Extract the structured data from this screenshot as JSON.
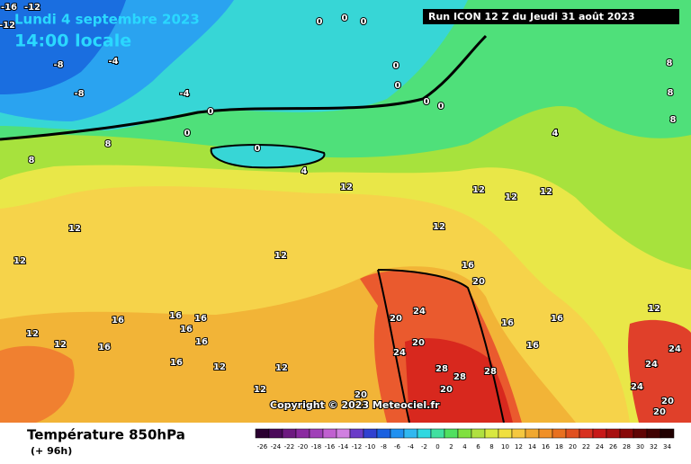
{
  "header": {
    "date": "Lundi 4 septembre 2023",
    "time": "14:00 locale",
    "run": "Run ICON 12 Z du Jeudi 31 août 2023"
  },
  "map": {
    "copyright": "Copyright © 2023 Meteociel.fr",
    "contour_labels": [
      -16,
      -12,
      -12,
      -8,
      -8,
      -4,
      -4,
      0,
      0,
      0,
      0,
      0,
      0,
      0,
      0,
      0,
      0,
      4,
      4,
      8,
      8,
      8,
      8,
      8,
      12,
      12,
      12,
      12,
      12,
      12,
      12,
      12,
      12,
      16,
      16,
      16,
      16,
      16,
      16,
      16,
      16,
      16,
      16,
      16,
      12,
      12,
      12,
      12,
      12,
      20,
      20,
      20,
      20,
      24,
      24,
      28,
      28,
      28,
      20,
      24,
      24,
      24,
      20,
      20
    ]
  },
  "footer": {
    "title": "Température 850hPa",
    "subtitle": "(+ 96h)",
    "scale_labels": [
      -26,
      -24,
      -22,
      -20,
      -18,
      -16,
      -14,
      -12,
      -10,
      -8,
      -6,
      -4,
      -2,
      0,
      2,
      4,
      6,
      8,
      10,
      12,
      14,
      16,
      18,
      20,
      22,
      24,
      26,
      28,
      30,
      32,
      34
    ]
  }
}
